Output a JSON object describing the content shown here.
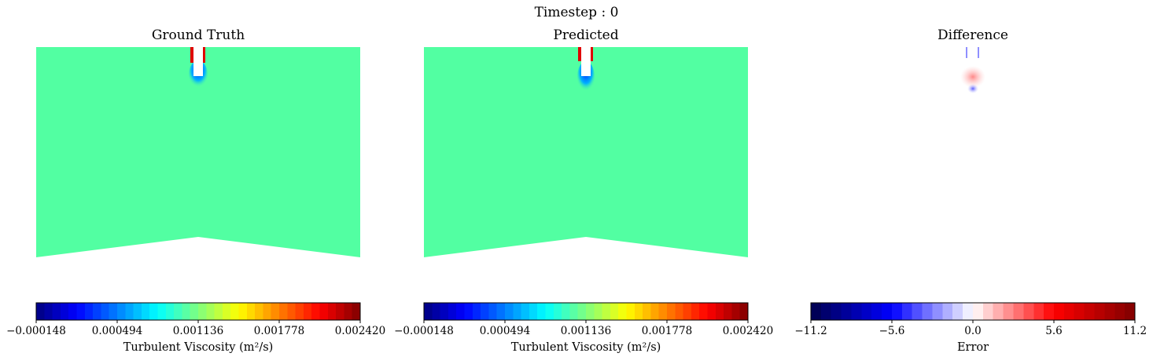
{
  "suptitle": "Timestep : 0",
  "chart_data": [
    {
      "type": "heatmap",
      "title": "Ground Truth",
      "field": "turbulent viscosity",
      "background_value": 0.001136,
      "colormap": "jet",
      "colorbar": {
        "label": "Turbulent Viscosity (m²/s)",
        "range": [
          -0.000148,
          0.00242
        ],
        "ticks": [
          "−0.000148",
          "0.000494",
          "0.001136",
          "0.001778",
          "0.002420"
        ]
      }
    },
    {
      "type": "heatmap",
      "title": "Predicted",
      "field": "turbulent viscosity",
      "background_value": 0.001136,
      "colormap": "jet",
      "colorbar": {
        "label": "Turbulent Viscosity (m²/s)",
        "range": [
          -0.000148,
          0.00242
        ],
        "ticks": [
          "−0.000148",
          "0.000494",
          "0.001136",
          "0.001778",
          "0.002420"
        ]
      }
    },
    {
      "type": "heatmap",
      "title": "Difference",
      "field": "error",
      "background_value": 0.0,
      "colormap": "seismic",
      "colorbar": {
        "label": "Error",
        "range": [
          -11.2,
          11.2
        ],
        "ticks": [
          "−11.2",
          "−5.6",
          "0.0",
          "5.6",
          "11.2"
        ]
      }
    }
  ],
  "colors": {
    "background_field": "#52ffa2",
    "jet": [
      "#00007f",
      "#0000ff",
      "#007fff",
      "#00ffff",
      "#7fff7f",
      "#ffff00",
      "#ff7f00",
      "#ff0000",
      "#7f0000"
    ],
    "seismic": [
      "#00004c",
      "#0000ff",
      "#ffffff",
      "#ff0000",
      "#7f0000"
    ]
  }
}
